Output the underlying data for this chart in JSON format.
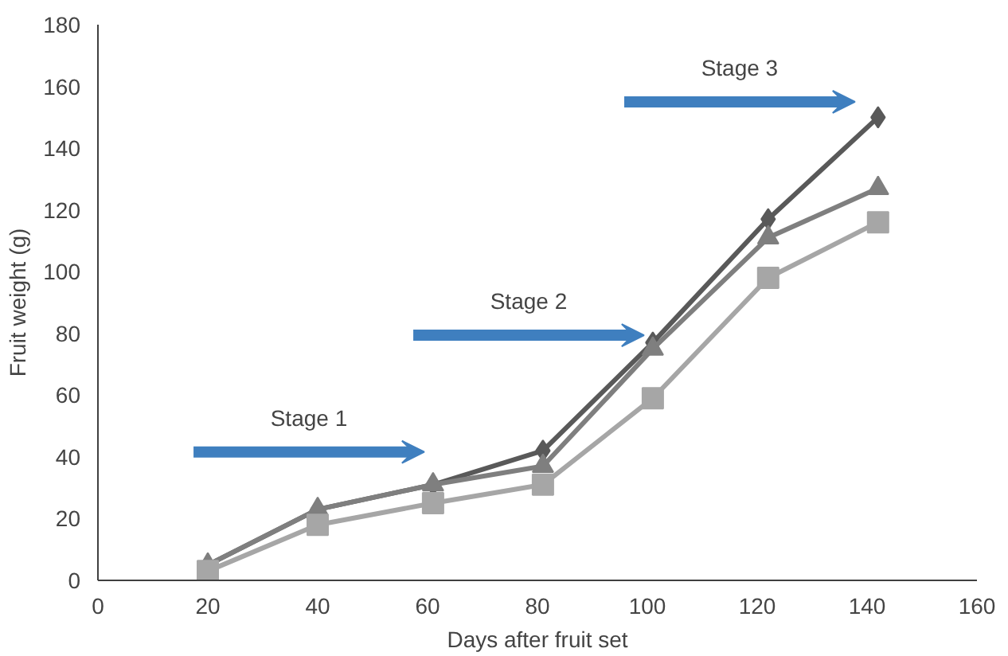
{
  "chart_data": {
    "type": "line",
    "xlabel": "Days after fruit set",
    "ylabel": "Fruit weight (g)",
    "x": [
      20,
      40,
      61,
      81,
      101,
      122,
      142
    ],
    "series": [
      {
        "color": "#595959",
        "marker": "diamond",
        "values": [
          5,
          23,
          31,
          42,
          77,
          117,
          150
        ]
      },
      {
        "color": "#7f7f7f",
        "marker": "triangle",
        "values": [
          5,
          23,
          31,
          37,
          75,
          111,
          127
        ]
      },
      {
        "color": "#a6a6a6",
        "marker": "square",
        "values": [
          3,
          18,
          25,
          31,
          59,
          98,
          116
        ]
      }
    ],
    "xlim": [
      0,
      160
    ],
    "xticks": [
      0,
      20,
      40,
      60,
      80,
      100,
      120,
      140,
      160
    ],
    "ylim": [
      0,
      180
    ],
    "yticks": [
      0,
      20,
      40,
      60,
      80,
      100,
      120,
      140,
      160,
      180
    ],
    "grid": false,
    "annotations": [
      "Stage 1",
      "Stage 2",
      "Stage 3"
    ]
  }
}
